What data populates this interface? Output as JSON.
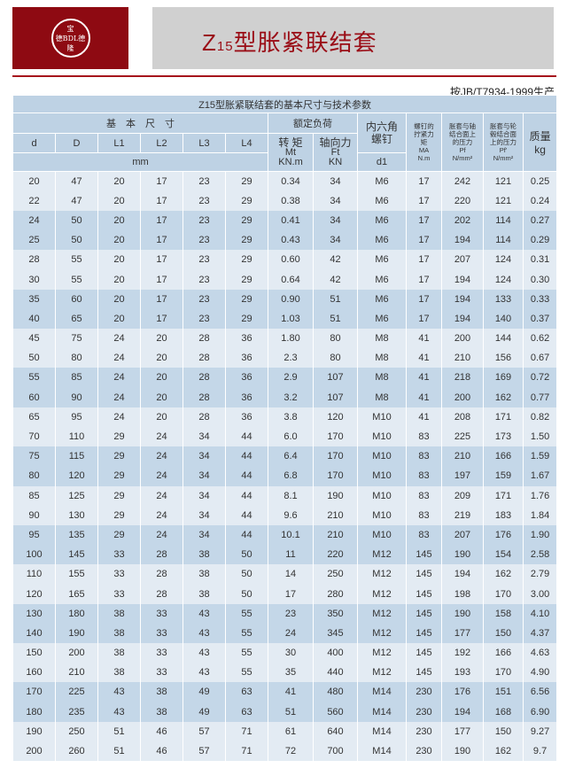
{
  "logo": {
    "top": "宝",
    "middle": "德BDL德",
    "bottom": "隆"
  },
  "header": {
    "title_prefix": "Z",
    "title_sub": "15",
    "title_main": "型胀紧联结套",
    "standard": "按JB/T7934-1999生产"
  },
  "table": {
    "caption": "Z15型胀紧联结套的基本尺寸与技术参数",
    "group_basic": "基　本　尺　寸",
    "group_load": "额定负荷",
    "screw": "内六角螺钉",
    "tighten": "螺钉的拧紧力矩",
    "tighten_sym": "MA",
    "tighten_unit": "N.m",
    "pf": "胀套与轴结合面上的压力",
    "pf_sym": "Pf",
    "pf_unit": "N/mm²",
    "pf2": "胀套与轮毂结合面上的压力",
    "pf2_sym": "Pf'",
    "pf2_unit": "N/mm²",
    "mass": "质量",
    "mass_unit": "kg",
    "cols": [
      "d",
      "D",
      "L1",
      "L2",
      "L3",
      "L4"
    ],
    "mm": "mm",
    "torque": "转 矩",
    "torque_sym": "Mt",
    "torque_unit": "KN.m",
    "axial": "轴向力",
    "axial_sym": "Ft",
    "axial_unit": "KN",
    "d1": "d1",
    "rows": [
      [
        "20",
        "47",
        "20",
        "17",
        "23",
        "29",
        "0.34",
        "34",
        "M6",
        "17",
        "242",
        "121",
        "0.25"
      ],
      [
        "22",
        "47",
        "20",
        "17",
        "23",
        "29",
        "0.38",
        "34",
        "M6",
        "17",
        "220",
        "121",
        "0.24"
      ],
      [
        "24",
        "50",
        "20",
        "17",
        "23",
        "29",
        "0.41",
        "34",
        "M6",
        "17",
        "202",
        "114",
        "0.27"
      ],
      [
        "25",
        "50",
        "20",
        "17",
        "23",
        "29",
        "0.43",
        "34",
        "M6",
        "17",
        "194",
        "114",
        "0.29"
      ],
      [
        "28",
        "55",
        "20",
        "17",
        "23",
        "29",
        "0.60",
        "42",
        "M6",
        "17",
        "207",
        "124",
        "0.31"
      ],
      [
        "30",
        "55",
        "20",
        "17",
        "23",
        "29",
        "0.64",
        "42",
        "M6",
        "17",
        "194",
        "124",
        "0.30"
      ],
      [
        "35",
        "60",
        "20",
        "17",
        "23",
        "29",
        "0.90",
        "51",
        "M6",
        "17",
        "194",
        "133",
        "0.33"
      ],
      [
        "40",
        "65",
        "20",
        "17",
        "23",
        "29",
        "1.03",
        "51",
        "M6",
        "17",
        "194",
        "140",
        "0.37"
      ],
      [
        "45",
        "75",
        "24",
        "20",
        "28",
        "36",
        "1.80",
        "80",
        "M8",
        "41",
        "200",
        "144",
        "0.62"
      ],
      [
        "50",
        "80",
        "24",
        "20",
        "28",
        "36",
        "2.3",
        "80",
        "M8",
        "41",
        "210",
        "156",
        "0.67"
      ],
      [
        "55",
        "85",
        "24",
        "20",
        "28",
        "36",
        "2.9",
        "107",
        "M8",
        "41",
        "218",
        "169",
        "0.72"
      ],
      [
        "60",
        "90",
        "24",
        "20",
        "28",
        "36",
        "3.2",
        "107",
        "M8",
        "41",
        "200",
        "162",
        "0.77"
      ],
      [
        "65",
        "95",
        "24",
        "20",
        "28",
        "36",
        "3.8",
        "120",
        "M10",
        "41",
        "208",
        "171",
        "0.82"
      ],
      [
        "70",
        "110",
        "29",
        "24",
        "34",
        "44",
        "6.0",
        "170",
        "M10",
        "83",
        "225",
        "173",
        "1.50"
      ],
      [
        "75",
        "115",
        "29",
        "24",
        "34",
        "44",
        "6.4",
        "170",
        "M10",
        "83",
        "210",
        "166",
        "1.59"
      ],
      [
        "80",
        "120",
        "29",
        "24",
        "34",
        "44",
        "6.8",
        "170",
        "M10",
        "83",
        "197",
        "159",
        "1.67"
      ],
      [
        "85",
        "125",
        "29",
        "24",
        "34",
        "44",
        "8.1",
        "190",
        "M10",
        "83",
        "209",
        "171",
        "1.76"
      ],
      [
        "90",
        "130",
        "29",
        "24",
        "34",
        "44",
        "9.6",
        "210",
        "M10",
        "83",
        "219",
        "183",
        "1.84"
      ],
      [
        "95",
        "135",
        "29",
        "24",
        "34",
        "44",
        "10.1",
        "210",
        "M10",
        "83",
        "207",
        "176",
        "1.90"
      ],
      [
        "100",
        "145",
        "33",
        "28",
        "38",
        "50",
        "11",
        "220",
        "M12",
        "145",
        "190",
        "154",
        "2.58"
      ],
      [
        "110",
        "155",
        "33",
        "28",
        "38",
        "50",
        "14",
        "250",
        "M12",
        "145",
        "194",
        "162",
        "2.79"
      ],
      [
        "120",
        "165",
        "33",
        "28",
        "38",
        "50",
        "17",
        "280",
        "M12",
        "145",
        "198",
        "170",
        "3.00"
      ],
      [
        "130",
        "180",
        "38",
        "33",
        "43",
        "55",
        "23",
        "350",
        "M12",
        "145",
        "190",
        "158",
        "4.10"
      ],
      [
        "140",
        "190",
        "38",
        "33",
        "43",
        "55",
        "24",
        "345",
        "M12",
        "145",
        "177",
        "150",
        "4.37"
      ],
      [
        "150",
        "200",
        "38",
        "33",
        "43",
        "55",
        "30",
        "400",
        "M12",
        "145",
        "192",
        "166",
        "4.63"
      ],
      [
        "160",
        "210",
        "38",
        "33",
        "43",
        "55",
        "35",
        "440",
        "M12",
        "145",
        "193",
        "170",
        "4.90"
      ],
      [
        "170",
        "225",
        "43",
        "38",
        "49",
        "63",
        "41",
        "480",
        "M14",
        "230",
        "176",
        "151",
        "6.56"
      ],
      [
        "180",
        "235",
        "43",
        "38",
        "49",
        "63",
        "51",
        "560",
        "M14",
        "230",
        "194",
        "168",
        "6.90"
      ],
      [
        "190",
        "250",
        "51",
        "46",
        "57",
        "71",
        "61",
        "640",
        "M14",
        "230",
        "177",
        "150",
        "9.27"
      ],
      [
        "200",
        "260",
        "51",
        "46",
        "57",
        "71",
        "72",
        "700",
        "M14",
        "230",
        "190",
        "162",
        "9.7"
      ]
    ]
  },
  "colors": {
    "brand": "#8e0a12",
    "header_bg": "#bed2e4",
    "row_dark": "#c4d7e8",
    "row_light": "#e3ebf3"
  }
}
